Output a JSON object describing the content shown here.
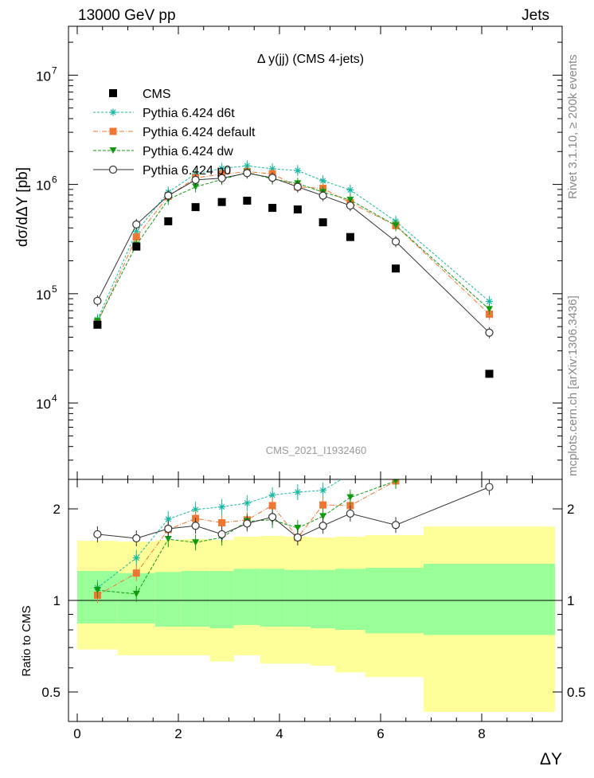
{
  "header": {
    "left": "13000 GeV pp",
    "right": "Jets"
  },
  "side": {
    "top": "Rivet 3.1.10, ≥ 200k events",
    "bottom": "mcplots.cern.ch [arXiv:1306.3436]"
  },
  "chart_data": {
    "type": "scatter",
    "title": "Δ y(jj) (CMS 4-jets)",
    "watermark": "CMS_2021_I1932460",
    "xlabel": "ΔY",
    "ylabel": "dσ/dΔY [pb]",
    "ratio_ylabel": "Ratio to CMS",
    "xlim": [
      -0.25,
      9.45
    ],
    "ylim": [
      2000,
      28000000
    ],
    "yscale": "log",
    "ratio_ylim": [
      0.4,
      2.5
    ],
    "ratio_yscale": "log",
    "x_ticks": [
      "0",
      "2",
      "4",
      "6",
      "8"
    ],
    "y_ticks": [
      {
        "base": "10",
        "exp": "4"
      },
      {
        "base": "10",
        "exp": "5"
      },
      {
        "base": "10",
        "exp": "6"
      },
      {
        "base": "10",
        "exp": "7"
      }
    ],
    "ratio_ticks": [
      "0.5",
      "1",
      "2"
    ],
    "legend_position": "top-left",
    "reference": {
      "name": "CMS",
      "color": "#000000",
      "x": [
        0.4,
        1.17,
        1.8,
        2.34,
        2.86,
        3.36,
        3.86,
        4.36,
        4.86,
        5.4,
        6.3,
        8.15
      ],
      "xerr": [
        0.4,
        0.37,
        0.26,
        0.28,
        0.24,
        0.26,
        0.24,
        0.26,
        0.24,
        0.3,
        0.6,
        1.3
      ],
      "values": [
        52000,
        270000,
        460000,
        620000,
        690000,
        710000,
        610000,
        590000,
        450000,
        330000,
        170000,
        18500
      ],
      "band_inner": [
        [
          0.84,
          1.25
        ],
        [
          0.84,
          1.23
        ],
        [
          0.82,
          1.24
        ],
        [
          0.82,
          1.25
        ],
        [
          0.81,
          1.25
        ],
        [
          0.83,
          1.27
        ],
        [
          0.82,
          1.27
        ],
        [
          0.82,
          1.26
        ],
        [
          0.81,
          1.26
        ],
        [
          0.8,
          1.27
        ],
        [
          0.78,
          1.28
        ],
        [
          0.77,
          1.32
        ]
      ],
      "band_outer": [
        [
          0.69,
          1.57
        ],
        [
          0.66,
          1.56
        ],
        [
          0.66,
          1.58
        ],
        [
          0.66,
          1.59
        ],
        [
          0.63,
          1.58
        ],
        [
          0.66,
          1.62
        ],
        [
          0.62,
          1.63
        ],
        [
          0.62,
          1.62
        ],
        [
          0.61,
          1.61
        ],
        [
          0.58,
          1.62
        ],
        [
          0.56,
          1.64
        ],
        [
          0.43,
          1.75
        ]
      ]
    },
    "series": [
      {
        "name": "Pythia 6.424 d6t",
        "color": "#18b8a0",
        "marker": "star",
        "dash": "3,2",
        "values": [
          58000,
          370000,
          850000,
          1250000,
          1400000,
          1480000,
          1390000,
          1340000,
          1080000,
          890000,
          460000,
          85000
        ],
        "ratio": [
          1.1,
          1.38,
          1.85,
          1.99,
          2.03,
          2.09,
          2.22,
          2.27,
          2.3,
          2.6,
          2.65,
          4.6
        ]
      },
      {
        "name": "Pythia 6.424 default",
        "color": "#ee7733",
        "marker": "square",
        "dash": "6,2,1,2",
        "values": [
          54000,
          330000,
          780000,
          1150000,
          1240000,
          1310000,
          1250000,
          950000,
          920000,
          680000,
          420000,
          65000
        ],
        "ratio": [
          1.04,
          1.23,
          1.71,
          1.86,
          1.8,
          1.84,
          2.05,
          1.61,
          2.06,
          2.05,
          2.47,
          3.5
        ]
      },
      {
        "name": "Pythia 6.424 dw",
        "color": "#119911",
        "marker": "triangle",
        "dash": "4,2",
        "values": [
          56000,
          280000,
          730000,
          950000,
          1110000,
          1290000,
          1120000,
          1020000,
          850000,
          720000,
          420000,
          72000
        ],
        "ratio": [
          1.08,
          1.05,
          1.59,
          1.55,
          1.61,
          1.82,
          1.84,
          1.73,
          1.89,
          2.18,
          2.47,
          3.9
        ]
      },
      {
        "name": "Pythia 6.424 p0",
        "color": "#333333",
        "marker": "circle",
        "dash": "",
        "values": [
          86000,
          430000,
          790000,
          1100000,
          1140000,
          1270000,
          1150000,
          950000,
          790000,
          640000,
          300000,
          44000
        ],
        "ratio": [
          1.65,
          1.6,
          1.72,
          1.76,
          1.65,
          1.79,
          1.88,
          1.61,
          1.76,
          1.93,
          1.77,
          2.36
        ]
      }
    ]
  }
}
